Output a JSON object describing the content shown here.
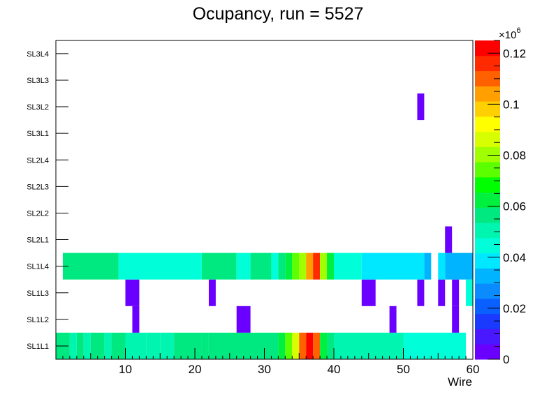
{
  "chart_data": {
    "type": "heatmap",
    "title": "Ocupancy, run = 5527",
    "xlabel": "Wire",
    "ylabel": "",
    "xlim": [
      0,
      60
    ],
    "x_ticks": [
      10,
      20,
      30,
      40,
      50,
      60
    ],
    "y_categories": [
      "SL1L1",
      "SL1L2",
      "SL1L3",
      "SL1L4",
      "SL2L1",
      "SL2L2",
      "SL2L3",
      "SL2L4",
      "SL3L1",
      "SL3L2",
      "SL3L3",
      "SL3L4"
    ],
    "colorbar": {
      "range": [
        0,
        0.125
      ],
      "ticks": [
        "0",
        "0.02",
        "0.04",
        "0.06",
        "0.08",
        "0.1",
        "0.12"
      ],
      "tick_values": [
        0,
        0.02,
        0.04,
        0.06,
        0.08,
        0.1,
        0.12
      ],
      "exponent_label": "×10",
      "exponent_power": "6"
    },
    "units_scale": 1000000,
    "rows": {
      "SL1L1": [
        {
          "wires": [
            1,
            2
          ],
          "value": 0.057
        },
        {
          "wires": [
            3,
            3
          ],
          "value": 0.052
        },
        {
          "wires": [
            4,
            4
          ],
          "value": 0.057
        },
        {
          "wires": [
            5,
            5
          ],
          "value": 0.052
        },
        {
          "wires": [
            6,
            7
          ],
          "value": 0.057
        },
        {
          "wires": [
            8,
            8
          ],
          "value": 0.052
        },
        {
          "wires": [
            9,
            10
          ],
          "value": 0.057
        },
        {
          "wires": [
            11,
            13
          ],
          "value": 0.049
        },
        {
          "wires": [
            14,
            15
          ],
          "value": 0.052
        },
        {
          "wires": [
            16,
            17
          ],
          "value": 0.049
        },
        {
          "wires": [
            18,
            21
          ],
          "value": 0.054
        },
        {
          "wires": [
            22,
            22
          ],
          "value": 0.059
        },
        {
          "wires": [
            23,
            32
          ],
          "value": 0.056
        },
        {
          "wires": [
            33,
            33
          ],
          "value": 0.062
        },
        {
          "wires": [
            34,
            34
          ],
          "value": 0.075
        },
        {
          "wires": [
            35,
            35
          ],
          "value": 0.085
        },
        {
          "wires": [
            36,
            36
          ],
          "value": 0.108
        },
        {
          "wires": [
            37,
            37
          ],
          "value": 0.125
        },
        {
          "wires": [
            38,
            38
          ],
          "value": 0.108
        },
        {
          "wires": [
            39,
            39
          ],
          "value": 0.064
        },
        {
          "wires": [
            40,
            40
          ],
          "value": 0.055
        },
        {
          "wires": [
            41,
            50
          ],
          "value": 0.048
        },
        {
          "wires": [
            51,
            59
          ],
          "value": 0.043
        }
      ],
      "SL1L2": [
        {
          "wires": [
            12,
            12
          ],
          "value": 0.005
        },
        {
          "wires": [
            27,
            28
          ],
          "value": 0.005
        },
        {
          "wires": [
            49,
            49
          ],
          "value": 0.005
        },
        {
          "wires": [
            58,
            58
          ],
          "value": 0.005
        }
      ],
      "SL1L3": [
        {
          "wires": [
            11,
            12
          ],
          "value": 0.005
        },
        {
          "wires": [
            23,
            23
          ],
          "value": 0.005
        },
        {
          "wires": [
            45,
            46
          ],
          "value": 0.005
        },
        {
          "wires": [
            53,
            53
          ],
          "value": 0.005
        },
        {
          "wires": [
            56,
            56
          ],
          "value": 0.005
        },
        {
          "wires": [
            58,
            58
          ],
          "value": 0.005
        },
        {
          "wires": [
            60,
            60
          ],
          "value": 0.047
        }
      ],
      "SL1L4": [
        {
          "wires": [
            2,
            9
          ],
          "value": 0.054
        },
        {
          "wires": [
            10,
            21
          ],
          "value": 0.046
        },
        {
          "wires": [
            22,
            26
          ],
          "value": 0.054
        },
        {
          "wires": [
            27,
            28
          ],
          "value": 0.046
        },
        {
          "wires": [
            29,
            31
          ],
          "value": 0.054
        },
        {
          "wires": [
            32,
            32
          ],
          "value": 0.046
        },
        {
          "wires": [
            33,
            33
          ],
          "value": 0.054
        },
        {
          "wires": [
            34,
            34
          ],
          "value": 0.063
        },
        {
          "wires": [
            35,
            35
          ],
          "value": 0.073
        },
        {
          "wires": [
            36,
            36
          ],
          "value": 0.082
        },
        {
          "wires": [
            37,
            37
          ],
          "value": 0.105
        },
        {
          "wires": [
            38,
            38
          ],
          "value": 0.118
        },
        {
          "wires": [
            39,
            39
          ],
          "value": 0.082
        },
        {
          "wires": [
            40,
            40
          ],
          "value": 0.063
        },
        {
          "wires": [
            41,
            44
          ],
          "value": 0.047
        },
        {
          "wires": [
            45,
            53
          ],
          "value": 0.041
        },
        {
          "wires": [
            54,
            54
          ],
          "value": 0.035
        },
        {
          "wires": [
            56,
            56
          ],
          "value": 0.041
        },
        {
          "wires": [
            57,
            60
          ],
          "value": 0.035
        }
      ],
      "SL2L1": [
        {
          "wires": [
            57,
            57
          ],
          "value": 0.005
        }
      ],
      "SL3L2": [
        {
          "wires": [
            53,
            53
          ],
          "value": 0.005
        }
      ]
    }
  }
}
